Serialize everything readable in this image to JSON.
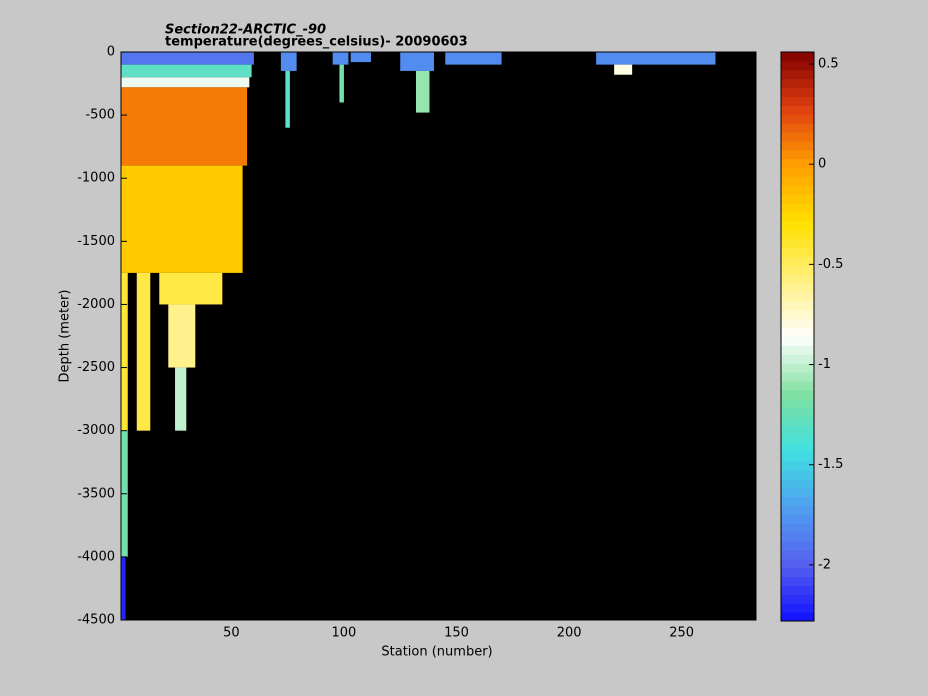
{
  "chart_data": {
    "type": "heatmap",
    "title": "Section22-ARCTIC_-90",
    "subtitle": "temperature(degrees_celsius)- 20090603",
    "xlabel": "Station (number)",
    "ylabel": "Depth (meter)",
    "xlim": [
      1,
      283
    ],
    "xticks": [
      50,
      100,
      150,
      200,
      250
    ],
    "ylim": [
      -4500,
      0
    ],
    "yticks": [
      0,
      -500,
      -1000,
      -1500,
      -2000,
      -2500,
      -3000,
      -3500,
      -4000,
      -4500
    ],
    "clim": [
      -2.28,
      0.56
    ],
    "cticks": [
      -2,
      -1.5,
      -1,
      -0.5,
      0,
      0.5
    ],
    "background": "#000000",
    "colormap": [
      "#1010ff",
      "#5560ee",
      "#50a0f0",
      "#40e0e0",
      "#80e0a0",
      "#ffffff",
      "#fff080",
      "#ffe000",
      "#ffa000",
      "#e04010",
      "#800000"
    ],
    "cells": [
      {
        "x": [
          1,
          60
        ],
        "y": [
          0,
          -100
        ],
        "value": -1.9
      },
      {
        "x": [
          1,
          59
        ],
        "y": [
          -100,
          -200
        ],
        "value": -1.3
      },
      {
        "x": [
          1,
          58
        ],
        "y": [
          -200,
          -280
        ],
        "value": -0.9
      },
      {
        "x": [
          1,
          57
        ],
        "y": [
          -280,
          -900
        ],
        "value": 0.1
      },
      {
        "x": [
          1,
          55
        ],
        "y": [
          -900,
          -1750
        ],
        "value": -0.2
      },
      {
        "x": [
          1,
          4
        ],
        "y": [
          -1750,
          -3000
        ],
        "value": -0.4
      },
      {
        "x": [
          1,
          4
        ],
        "y": [
          -3000,
          -4000
        ],
        "value": -1.2
      },
      {
        "x": [
          1,
          3
        ],
        "y": [
          -4000,
          -4500
        ],
        "value": -2.2
      },
      {
        "x": [
          8,
          14
        ],
        "y": [
          -1750,
          -3000
        ],
        "value": -0.45
      },
      {
        "x": [
          18,
          46
        ],
        "y": [
          -1750,
          -2000
        ],
        "value": -0.45
      },
      {
        "x": [
          22,
          34
        ],
        "y": [
          -2000,
          -2500
        ],
        "value": -0.6
      },
      {
        "x": [
          25,
          30
        ],
        "y": [
          -2500,
          -3000
        ],
        "value": -1.0
      },
      {
        "x": [
          72,
          79
        ],
        "y": [
          0,
          -150
        ],
        "value": -1.8
      },
      {
        "x": [
          74,
          76
        ],
        "y": [
          -150,
          -600
        ],
        "value": -1.3
      },
      {
        "x": [
          95,
          102
        ],
        "y": [
          0,
          -100
        ],
        "value": -1.8
      },
      {
        "x": [
          98,
          100
        ],
        "y": [
          -100,
          -400
        ],
        "value": -1.2
      },
      {
        "x": [
          103,
          112
        ],
        "y": [
          0,
          -80
        ],
        "value": -1.8
      },
      {
        "x": [
          125,
          140
        ],
        "y": [
          0,
          -150
        ],
        "value": -1.8
      },
      {
        "x": [
          132,
          138
        ],
        "y": [
          -150,
          -480
        ],
        "value": -1.1
      },
      {
        "x": [
          145,
          170
        ],
        "y": [
          0,
          -100
        ],
        "value": -1.8
      },
      {
        "x": [
          212,
          265
        ],
        "y": [
          0,
          -100
        ],
        "value": -1.8
      },
      {
        "x": [
          220,
          228
        ],
        "y": [
          -100,
          -180
        ],
        "value": -0.8
      }
    ]
  }
}
